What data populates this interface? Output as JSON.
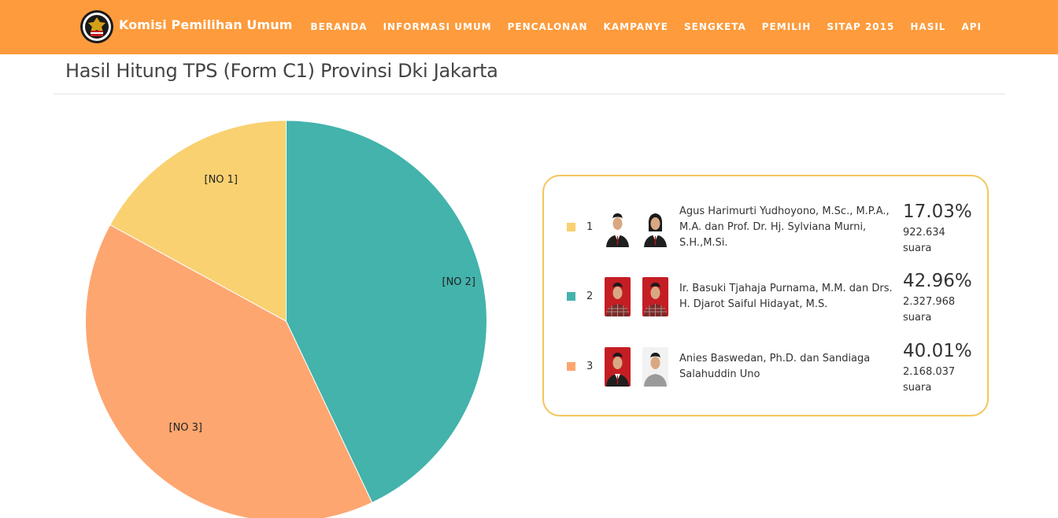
{
  "header": {
    "brand": "Komisi Pemilihan Umum",
    "logo_text": "KOMISI PEMILIHAN UMUM",
    "nav": [
      {
        "label": "BERANDA"
      },
      {
        "label": "INFORMASI UMUM"
      },
      {
        "label": "PENCALONAN"
      },
      {
        "label": "KAMPANYE"
      },
      {
        "label": "SENGKETA"
      },
      {
        "label": "PEMILIH"
      },
      {
        "label": "SITAP 2015"
      },
      {
        "label": "HASIL"
      },
      {
        "label": "API"
      }
    ]
  },
  "page": {
    "title": "Hasil Hitung TPS (Form C1) Provinsi Dki Jakarta"
  },
  "chart_data": {
    "type": "pie",
    "title": "",
    "categories": [
      "[NO 1]",
      "[NO 2]",
      "[NO 3]"
    ],
    "values": [
      17.03,
      42.96,
      40.01
    ],
    "colors": [
      "#f9d170",
      "#43b3ac",
      "#fea670"
    ],
    "start_angle": "12 o'clock",
    "direction": "counter-clockwise from NO 1"
  },
  "candidates": [
    {
      "number": "1",
      "color": "#f9d170",
      "names": "Agus Harimurti Yudhoyono, M.Sc., M.P.A., M.A. dan Prof. Dr. Hj. Sylviana Murni, S.H.,M.Si.",
      "percent": "17.03%",
      "votes": "922.634",
      "votes_unit": "suara",
      "photo_bg": [
        "#ffffff",
        "#ffffff"
      ]
    },
    {
      "number": "2",
      "color": "#43b3ac",
      "names": "Ir. Basuki Tjahaja Purnama, M.M. dan Drs. H. Djarot Saiful Hidayat, M.S.",
      "percent": "42.96%",
      "votes": "2.327.968",
      "votes_unit": "suara",
      "photo_bg": [
        "#c41e24",
        "#c41e24"
      ]
    },
    {
      "number": "3",
      "color": "#fea670",
      "names": "Anies Baswedan, Ph.D. dan Sandiaga Salahuddin Uno",
      "percent": "40.01%",
      "votes": "2.168.037",
      "votes_unit": "suara",
      "photo_bg": [
        "#c41e24",
        "#f2f2f2"
      ]
    }
  ]
}
